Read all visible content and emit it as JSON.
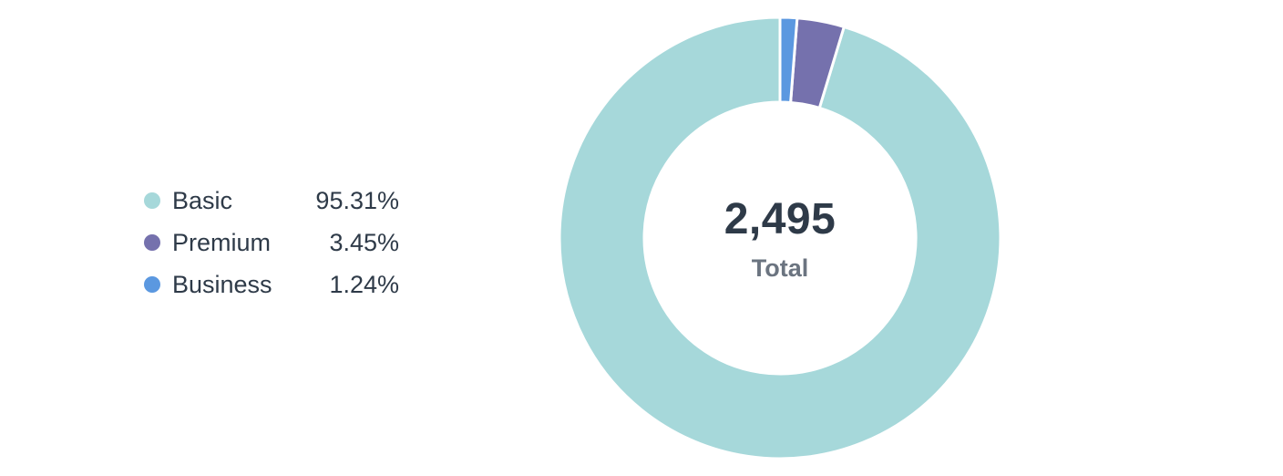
{
  "chart_data": {
    "type": "pie",
    "total": "2,495",
    "total_label": "Total",
    "series": [
      {
        "name": "Basic",
        "value": 95.31,
        "display": "95.31%",
        "color": "#a6d8da"
      },
      {
        "name": "Premium",
        "value": 3.45,
        "display": "3.45%",
        "color": "#7571ad"
      },
      {
        "name": "Business",
        "value": 1.24,
        "display": "1.24%",
        "color": "#5b98e0"
      }
    ],
    "legend_placement": "left"
  }
}
